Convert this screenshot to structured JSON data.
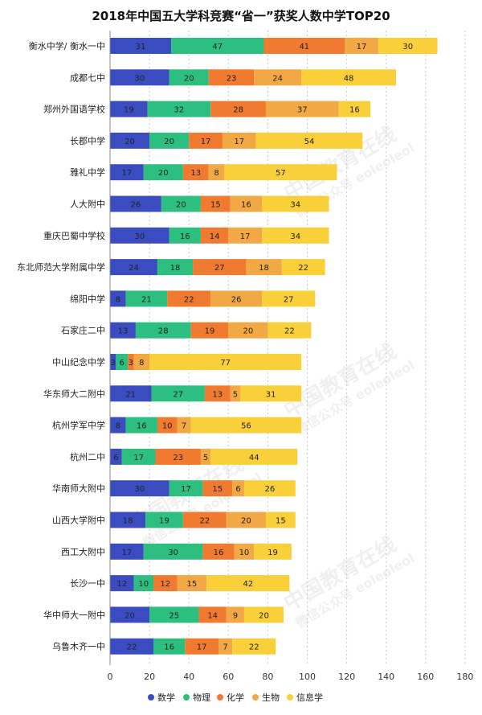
{
  "chart_data": {
    "type": "bar",
    "orientation": "horizontal",
    "stacked": true,
    "title": "2018年中国五大学科竞赛“省一”获奖人数中学TOP20",
    "categories": [
      "衡水中学/ 衡水一中",
      "成都七中",
      "郑州外国语学校",
      "长郡中学",
      "雅礼中学",
      "人大附中",
      "重庆巴蜀中学校",
      "东北师范大学附属中学",
      "绵阳中学",
      "石家庄二中",
      "中山纪念中学",
      "华东师大二附中",
      "杭州学军中学",
      "杭州二中",
      "华南师大附中",
      "山西大学附中",
      "西工大附中",
      "长沙一中",
      "华中师大一附中",
      "乌鲁木齐一中"
    ],
    "series": [
      {
        "name": "数学",
        "color": "#3b4cc0",
        "values": [
          31,
          30,
          19,
          20,
          17,
          26,
          30,
          24,
          8,
          13,
          3,
          21,
          8,
          6,
          30,
          18,
          17,
          12,
          20,
          22
        ]
      },
      {
        "name": "物理",
        "color": "#2dbf7f",
        "values": [
          47,
          20,
          32,
          20,
          20,
          20,
          16,
          18,
          21,
          28,
          6,
          27,
          16,
          17,
          17,
          19,
          30,
          10,
          25,
          16
        ]
      },
      {
        "name": "化学",
        "color": "#f07a30",
        "values": [
          41,
          23,
          28,
          17,
          13,
          15,
          14,
          27,
          22,
          19,
          3,
          13,
          10,
          23,
          15,
          22,
          16,
          12,
          14,
          17
        ]
      },
      {
        "name": "生物",
        "color": "#f2a844",
        "values": [
          17,
          24,
          37,
          17,
          8,
          16,
          17,
          18,
          26,
          20,
          8,
          5,
          7,
          5,
          6,
          20,
          10,
          15,
          9,
          7
        ]
      },
      {
        "name": "信息学",
        "color": "#f9cf3a",
        "values": [
          30,
          48,
          16,
          54,
          57,
          34,
          34,
          22,
          27,
          22,
          77,
          31,
          56,
          44,
          26,
          15,
          19,
          42,
          20,
          22
        ]
      }
    ],
    "xlim": [
      0,
      180
    ],
    "xticks": [
      0,
      20,
      40,
      60,
      80,
      100,
      120,
      140,
      160,
      180
    ],
    "grid": "vertical dashed",
    "legend_position": "bottom"
  },
  "watermark": {
    "line1": "中国教育在线",
    "line2": "微信公众号 eoleoleol"
  }
}
